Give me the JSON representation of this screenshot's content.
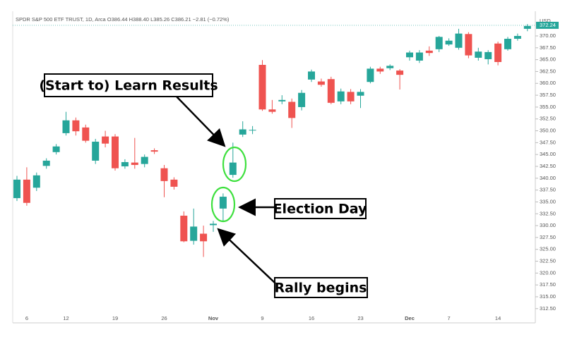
{
  "chart_data": {
    "type": "candlestick",
    "title": "SPDR S&P 500 ETF TRUST, 1D, Arca  O386.44  H388.40  L385.26  C386.21  −2.81 (−0.72%)",
    "y_axis_label": "USD",
    "categories": [
      null,
      "6",
      null,
      null,
      null,
      "12",
      null,
      null,
      null,
      null,
      "19",
      null,
      null,
      null,
      null,
      "26",
      null,
      null,
      null,
      null,
      "Nov",
      null,
      null,
      null,
      null,
      "9",
      null,
      null,
      null,
      null,
      "16",
      null,
      null,
      null,
      null,
      "23",
      null,
      null,
      null,
      null,
      "Dec",
      null,
      null,
      null,
      "7",
      null,
      null,
      null,
      null,
      "14",
      null,
      null,
      null
    ],
    "series": [
      {
        "up_color": "#26a69a",
        "down_color": "#ef5350",
        "open": [
          335.8,
          339.7,
          338.0,
          342.6,
          345.5,
          349.5,
          352.2,
          350.7,
          343.7,
          348.8,
          348.8,
          342.5,
          343.3,
          343.0,
          345.9,
          342.1,
          339.7,
          332.1,
          326.8,
          328.3,
          330.1,
          333.6,
          340.7,
          349.2,
          350.1,
          363.9,
          354.5,
          356.2,
          356.1,
          355.0,
          360.8,
          360.4,
          360.9,
          356.2,
          358.2,
          357.4,
          360.3,
          363.1,
          363.2,
          362.7,
          365.5,
          364.8,
          366.9,
          367.2,
          368.2,
          367.5,
          370.4,
          365.4,
          365.1,
          368.4,
          367.2,
          369.4,
          371.5
        ],
        "high": [
          340.5,
          342.3,
          341.2,
          344.2,
          347.2,
          354.0,
          352.8,
          351.3,
          348.3,
          350.0,
          349.3,
          344.0,
          348.5,
          345.0,
          346.3,
          342.8,
          340.2,
          333.0,
          333.6,
          330.0,
          331.0,
          336.8,
          347.5,
          352.0,
          351.0,
          364.9,
          356.5,
          357.5,
          356.8,
          358.6,
          362.9,
          361.0,
          361.4,
          358.9,
          358.8,
          358.8,
          363.5,
          363.5,
          364.0,
          363.0,
          366.9,
          367.0,
          367.8,
          370.0,
          369.5,
          371.5,
          370.8,
          367.5,
          367.0,
          368.8,
          369.8,
          370.5,
          372.5
        ],
        "low": [
          335.2,
          334.2,
          337.3,
          342.0,
          345.0,
          349.0,
          349.0,
          347.5,
          343.0,
          346.5,
          341.6,
          342.0,
          342.0,
          342.3,
          345.1,
          336.0,
          337.6,
          326.5,
          326.0,
          323.4,
          328.7,
          331.0,
          340.1,
          348.7,
          349.3,
          354.2,
          353.6,
          355.6,
          350.6,
          354.3,
          360.3,
          359.3,
          355.6,
          355.6,
          355.6,
          354.8,
          360.0,
          362.0,
          362.8,
          358.7,
          364.8,
          364.3,
          365.8,
          366.6,
          367.9,
          367.1,
          365.3,
          364.8,
          364.0,
          363.8,
          366.9,
          369.0,
          371.0
        ],
        "close": [
          339.7,
          334.8,
          340.6,
          343.7,
          346.7,
          352.2,
          349.9,
          347.9,
          347.7,
          347.3,
          342.1,
          343.4,
          342.8,
          344.5,
          345.6,
          339.4,
          338.2,
          326.7,
          329.8,
          326.7,
          330.4,
          336.1,
          343.3,
          350.3,
          350.2,
          354.5,
          354.0,
          356.5,
          352.7,
          358.0,
          362.5,
          359.7,
          355.9,
          358.3,
          356.2,
          358.2,
          363.1,
          362.5,
          363.7,
          361.8,
          366.5,
          366.5,
          366.4,
          369.8,
          369.0,
          370.5,
          365.9,
          366.7,
          366.6,
          364.5,
          369.4,
          370.0,
          372.1
        ]
      }
    ],
    "last_price": 372.24,
    "ylim": [
      309.5,
      375.2
    ],
    "yticks": [
      {
        "value": 312.5,
        "label": "312.50"
      },
      {
        "value": 315,
        "label": "315.00"
      },
      {
        "value": 317.5,
        "label": "317.50"
      },
      {
        "value": 320,
        "label": "320.00"
      },
      {
        "value": 322.5,
        "label": "322.50"
      },
      {
        "value": 325,
        "label": "325.00"
      },
      {
        "value": 327.5,
        "label": "327.50"
      },
      {
        "value": 330,
        "label": "330.00"
      },
      {
        "value": 332.5,
        "label": "332.50"
      },
      {
        "value": 335,
        "label": "335.00"
      },
      {
        "value": 337.5,
        "label": "337.50"
      },
      {
        "value": 340,
        "label": "340.00"
      },
      {
        "value": 342.5,
        "label": "342.50"
      },
      {
        "value": 345,
        "label": "345.00"
      },
      {
        "value": 347.5,
        "label": "347.50"
      },
      {
        "value": 350,
        "label": "350.00"
      },
      {
        "value": 352.5,
        "label": "352.50"
      },
      {
        "value": 355,
        "label": "355.00"
      },
      {
        "value": 357.5,
        "label": "357.50"
      },
      {
        "value": 360,
        "label": "360.00"
      },
      {
        "value": 362.5,
        "label": "362.50"
      },
      {
        "value": 365,
        "label": "365.00"
      },
      {
        "value": 367.5,
        "label": "367.50"
      },
      {
        "value": 370,
        "label": "370.00"
      }
    ],
    "annotations": [
      "(Start to) Learn Results",
      "Election Day",
      "Rally begins"
    ]
  }
}
